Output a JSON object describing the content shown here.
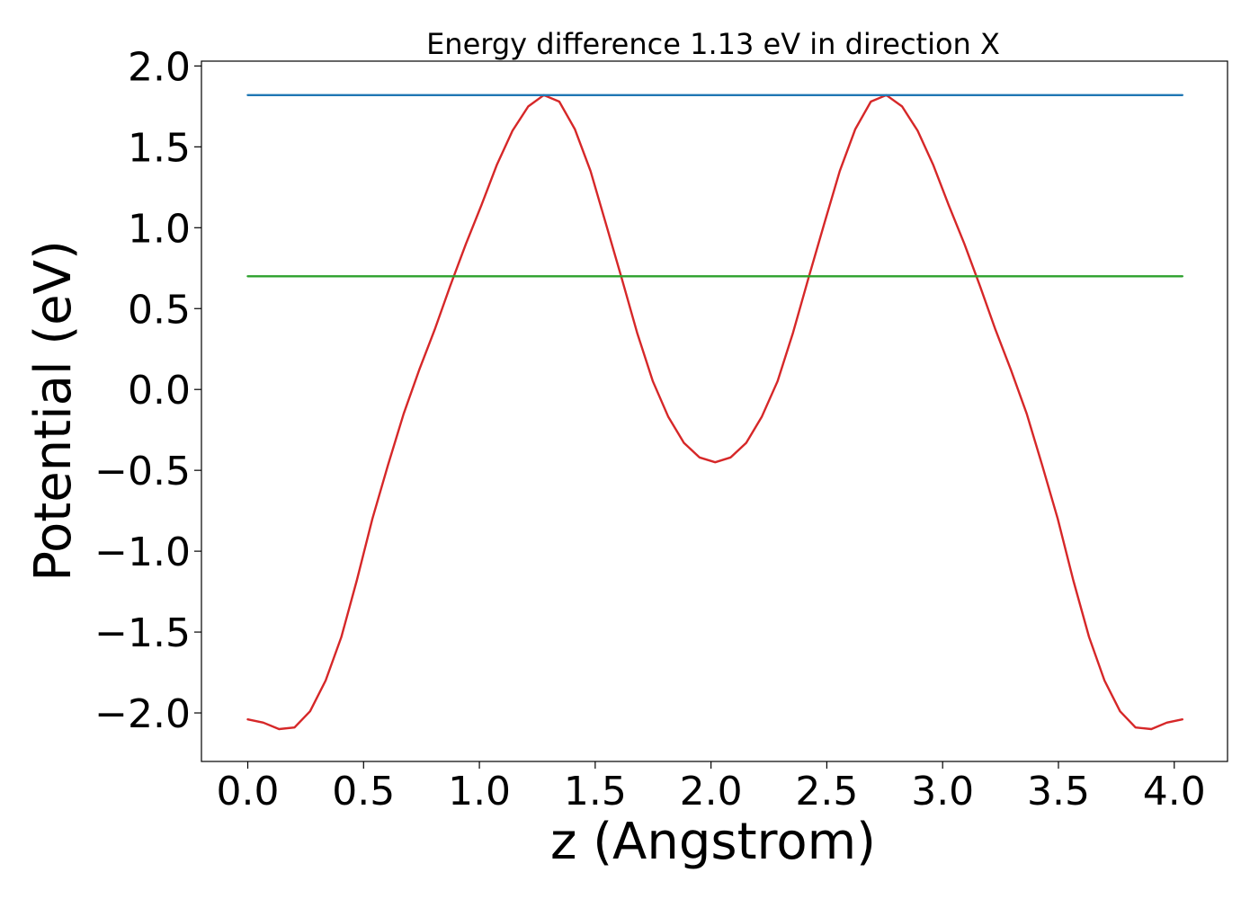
{
  "chart_data": {
    "type": "line",
    "title": "Energy difference 1.13 eV in direction X",
    "xlabel": "z (Angstrom)",
    "ylabel": "Potential (eV)",
    "xlim": [
      -0.2,
      4.23
    ],
    "ylim": [
      -2.3,
      2.03
    ],
    "xticks": [
      0.0,
      0.5,
      1.0,
      1.5,
      2.0,
      2.5,
      3.0,
      3.5,
      4.0
    ],
    "xtick_labels": [
      "0.0",
      "0.5",
      "1.0",
      "1.5",
      "2.0",
      "2.5",
      "3.0",
      "3.5",
      "4.0"
    ],
    "yticks": [
      2.0,
      1.5,
      1.0,
      0.5,
      0.0,
      -0.5,
      -1.0,
      -1.5,
      -2.0
    ],
    "ytick_labels": [
      "2.0",
      "1.5",
      "1.0",
      "0.5",
      "0.0",
      "−0.5",
      "−1.0",
      "−1.5",
      "−2.0"
    ],
    "grid": false,
    "series": [
      {
        "color": "#d62728",
        "x": [
          0.0,
          0.067,
          0.135,
          0.202,
          0.269,
          0.336,
          0.404,
          0.471,
          0.538,
          0.605,
          0.673,
          0.74,
          0.807,
          0.874,
          0.942,
          1.009,
          1.076,
          1.143,
          1.211,
          1.278,
          1.345,
          1.412,
          1.48,
          1.547,
          1.614,
          1.681,
          1.749,
          1.816,
          1.883,
          1.95,
          2.018,
          2.085,
          2.152,
          2.219,
          2.287,
          2.354,
          2.421,
          2.488,
          2.556,
          2.623,
          2.69,
          2.757,
          2.825,
          2.892,
          2.959,
          3.026,
          3.094,
          3.161,
          3.228,
          3.295,
          3.363,
          3.43,
          3.497,
          3.564,
          3.632,
          3.699,
          3.766,
          3.833,
          3.901,
          3.968,
          4.035
        ],
        "y": [
          -2.04,
          -2.06,
          -2.1,
          -2.09,
          -1.99,
          -1.8,
          -1.53,
          -1.18,
          -0.8,
          -0.47,
          -0.15,
          0.12,
          0.37,
          0.64,
          0.9,
          1.14,
          1.39,
          1.6,
          1.75,
          1.82,
          1.78,
          1.61,
          1.35,
          1.02,
          0.69,
          0.35,
          0.05,
          -0.17,
          -0.33,
          -0.42,
          -0.45,
          -0.42,
          -0.33,
          -0.17,
          0.05,
          0.35,
          0.69,
          1.02,
          1.35,
          1.61,
          1.78,
          1.82,
          1.75,
          1.6,
          1.39,
          1.14,
          0.9,
          0.64,
          0.37,
          0.12,
          -0.15,
          -0.47,
          -0.8,
          -1.18,
          -1.53,
          -1.8,
          -1.99,
          -2.09,
          -2.1,
          -2.06,
          -2.04
        ]
      },
      {
        "color": "#1f77b4",
        "x": [
          0.0,
          4.035
        ],
        "y": [
          1.82,
          1.82
        ]
      },
      {
        "color": "#2ca02c",
        "x": [
          0.0,
          4.035
        ],
        "y": [
          0.7,
          0.7
        ]
      }
    ]
  }
}
